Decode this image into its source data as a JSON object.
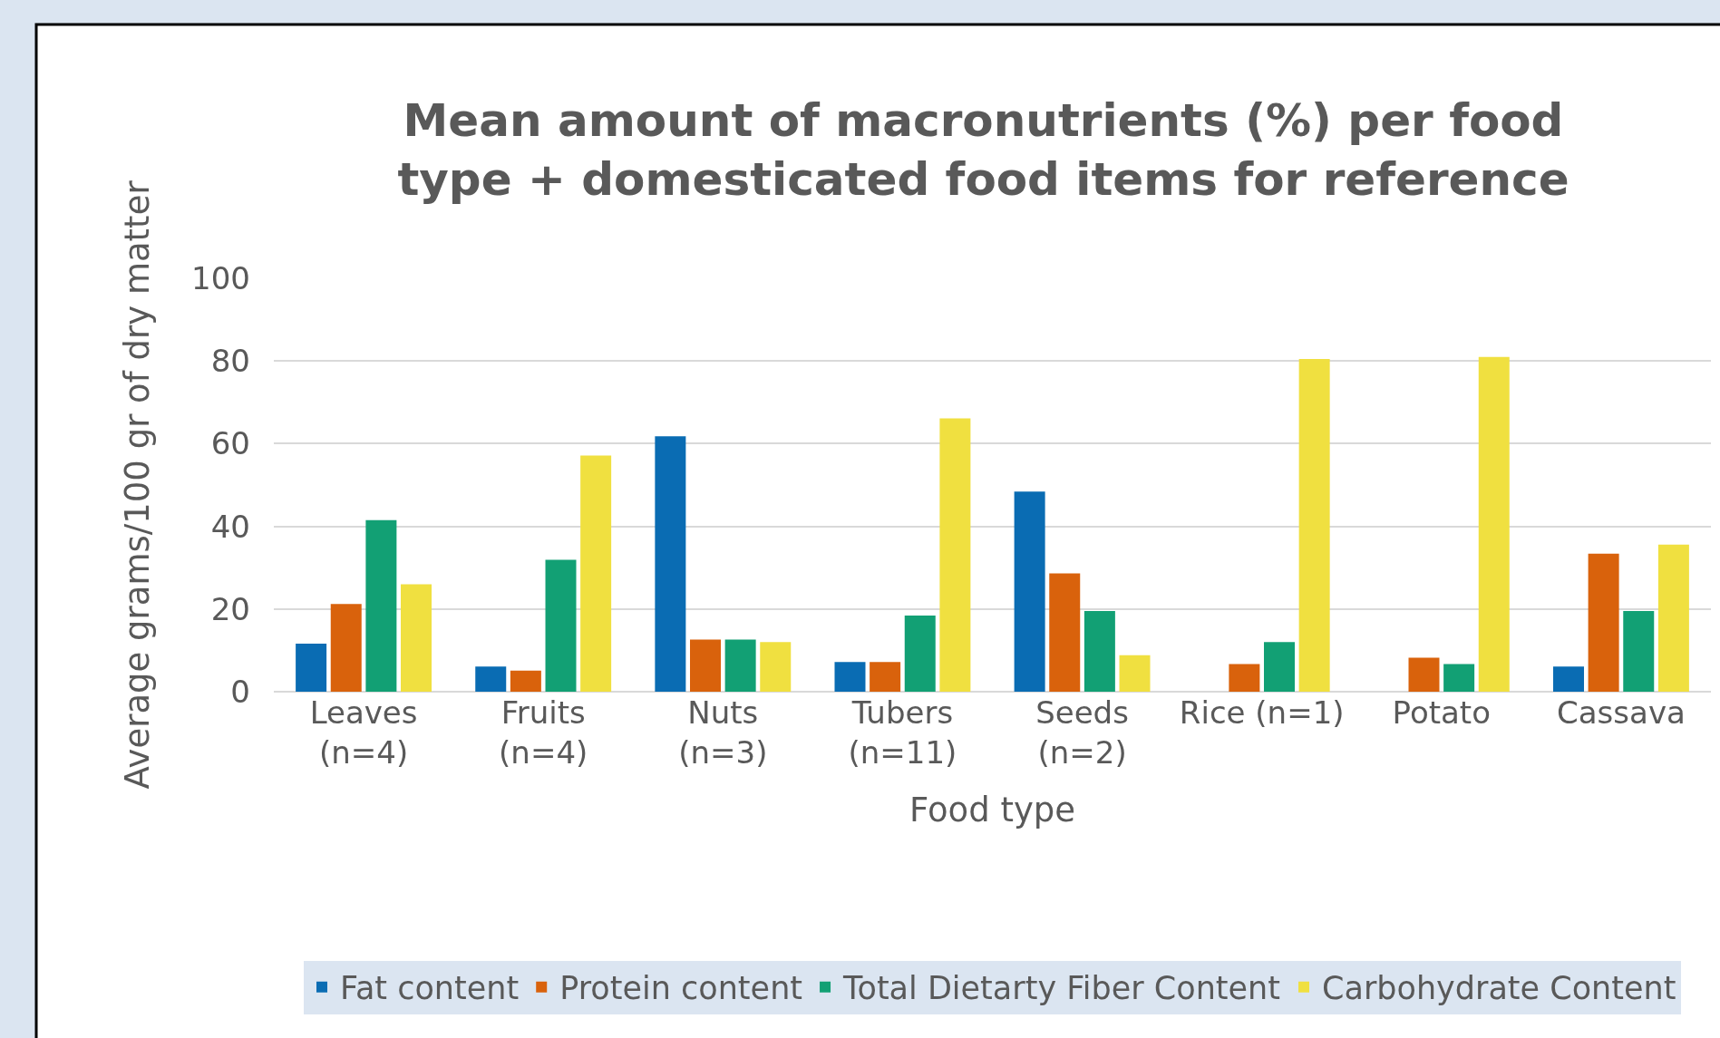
{
  "chart_data": {
    "type": "bar",
    "title": "Mean amount of macronutrients (%) per food\ntype + domesticated food items for reference",
    "xlabel": "Food type",
    "ylabel": "Average grams/100 gr of dry matter",
    "categories": [
      "Leaves\n(n=4)",
      "Fruits\n(n=4)",
      "Nuts\n(n=3)",
      "Tubers\n(n=11)",
      "Seeds\n(n=2)",
      "Rice (n=1)",
      "Potato",
      "Cassava"
    ],
    "series": [
      {
        "name": "Fat content",
        "color": "#0a6cb3",
        "values": [
          11.6,
          6.1,
          61.8,
          7.2,
          48.4,
          null,
          null,
          6.1
        ]
      },
      {
        "name": "Protein content",
        "color": "#d9620c",
        "values": [
          21.2,
          5.1,
          12.6,
          7.2,
          28.6,
          6.7,
          8.2,
          33.4
        ]
      },
      {
        "name": "Total Dietarty Fiber Content",
        "color": "#12a074",
        "values": [
          41.5,
          31.9,
          12.6,
          18.4,
          19.5,
          12.0,
          6.7,
          19.5
        ]
      },
      {
        "name": "Carbohydrate Content",
        "color": "#f0e040",
        "values": [
          26.0,
          57.1,
          12.0,
          66.1,
          8.8,
          80.5,
          81.0,
          35.6
        ]
      }
    ],
    "ylim": [
      0,
      100
    ],
    "yticks": [
      0,
      20,
      40,
      60,
      80,
      100
    ],
    "grid": "y",
    "legend": "bottom"
  }
}
